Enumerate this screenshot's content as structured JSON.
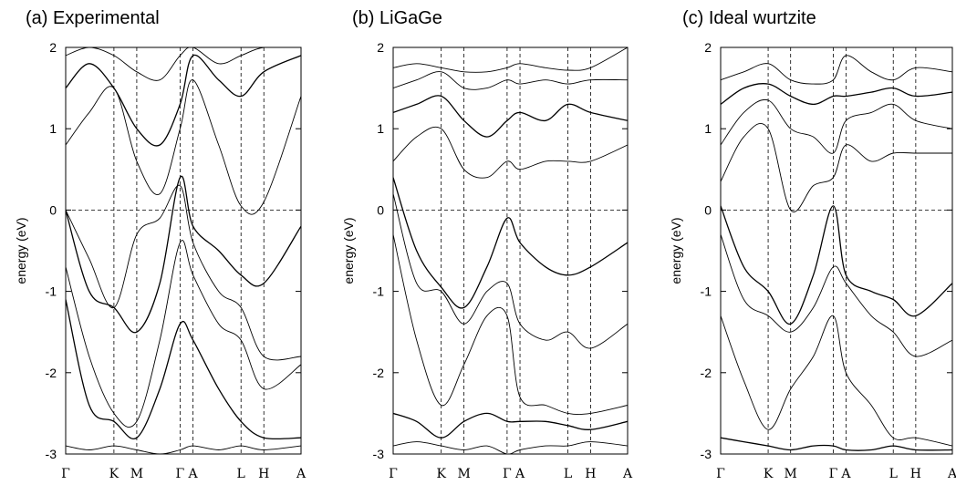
{
  "chart_data": [
    {
      "type": "line",
      "title": "(a) Experimental",
      "ylabel": "energy (eV)",
      "ylim": [
        -3,
        2
      ],
      "yticks": [
        "2",
        "1",
        "0",
        "-1",
        "-2",
        "-3"
      ],
      "kpoints": [
        "Γ",
        "K",
        "M",
        "Γ",
        "A",
        "L",
        "H",
        "A"
      ],
      "kpos": [
        0,
        0.205,
        0.302,
        0.486,
        0.541,
        0.745,
        0.842,
        1.0
      ],
      "zero_line": true,
      "series": [
        {
          "x": [
            0,
            0.1,
            0.205,
            0.302,
            0.4,
            0.486,
            0.541,
            0.65,
            0.745,
            0.842,
            1.0
          ],
          "y": [
            0.0,
            -1.0,
            -1.2,
            -1.5,
            -0.9,
            0.4,
            -0.2,
            -0.5,
            -0.8,
            -0.9,
            -0.2
          ]
        },
        {
          "x": [
            0,
            0.1,
            0.205,
            0.302,
            0.4,
            0.486,
            0.541,
            0.65,
            0.745,
            0.842,
            1.0
          ],
          "y": [
            0.0,
            -0.6,
            -1.2,
            -0.3,
            -0.1,
            0.3,
            -0.4,
            -1.0,
            -1.2,
            -1.8,
            -1.8
          ]
        },
        {
          "x": [
            0,
            0.1,
            0.205,
            0.302,
            0.4,
            0.486,
            0.541,
            0.65,
            0.745,
            0.842,
            1.0
          ],
          "y": [
            -0.7,
            -1.8,
            -2.5,
            -2.6,
            -1.6,
            -0.4,
            -0.8,
            -1.4,
            -1.6,
            -2.2,
            -1.9
          ]
        },
        {
          "x": [
            0,
            0.1,
            0.205,
            0.302,
            0.4,
            0.486,
            0.541,
            0.65,
            0.745,
            0.842,
            1.0
          ],
          "y": [
            -1.1,
            -2.4,
            -2.6,
            -2.8,
            -2.2,
            -1.4,
            -1.6,
            -2.2,
            -2.6,
            -2.8,
            -2.8
          ]
        },
        {
          "x": [
            0,
            0.1,
            0.205,
            0.302,
            0.4,
            0.486,
            0.541,
            0.65,
            0.745,
            0.842,
            1.0
          ],
          "y": [
            -2.9,
            -2.95,
            -2.9,
            -2.95,
            -3.0,
            -2.95,
            -2.9,
            -2.95,
            -2.9,
            -2.95,
            -2.9
          ]
        },
        {
          "x": [
            0,
            0.1,
            0.205,
            0.302,
            0.4,
            0.486,
            0.541,
            0.65,
            0.745,
            0.842,
            1.0
          ],
          "y": [
            0.8,
            1.2,
            1.5,
            0.6,
            0.2,
            1.0,
            1.6,
            0.8,
            0.05,
            0.1,
            1.4
          ]
        },
        {
          "x": [
            0,
            0.1,
            0.205,
            0.302,
            0.4,
            0.486,
            0.541,
            0.65,
            0.745,
            0.842,
            1.0
          ],
          "y": [
            1.5,
            1.8,
            1.5,
            1.0,
            0.8,
            1.3,
            1.9,
            1.6,
            1.4,
            1.7,
            1.9
          ]
        },
        {
          "x": [
            0,
            0.1,
            0.205,
            0.302,
            0.4,
            0.486,
            0.541,
            0.65,
            0.745,
            0.842,
            1.0
          ],
          "y": [
            1.9,
            2.0,
            1.9,
            1.7,
            1.6,
            1.9,
            2.0,
            1.8,
            1.9,
            2.0,
            2.0
          ]
        }
      ]
    },
    {
      "type": "line",
      "title": "(b) LiGaGe",
      "ylabel": "energy (eV)",
      "ylim": [
        -3,
        2
      ],
      "yticks": [
        "2",
        "1",
        "0",
        "-1",
        "-2",
        "-3"
      ],
      "kpoints": [
        "Γ",
        "K",
        "M",
        "Γ",
        "A",
        "L",
        "H",
        "A"
      ],
      "kpos": [
        0,
        0.205,
        0.302,
        0.486,
        0.541,
        0.745,
        0.842,
        1.0
      ],
      "zero_line": true,
      "series": [
        {
          "x": [
            0,
            0.1,
            0.205,
            0.302,
            0.4,
            0.486,
            0.541,
            0.65,
            0.745,
            0.842,
            1.0
          ],
          "y": [
            0.4,
            -0.5,
            -0.95,
            -1.2,
            -0.7,
            -0.1,
            -0.4,
            -0.7,
            -0.8,
            -0.7,
            -0.4
          ]
        },
        {
          "x": [
            0,
            0.1,
            0.205,
            0.302,
            0.4,
            0.486,
            0.541,
            0.65,
            0.745,
            0.842,
            1.0
          ],
          "y": [
            0.2,
            -0.9,
            -1.0,
            -1.4,
            -1.0,
            -0.9,
            -1.4,
            -1.6,
            -1.5,
            -1.7,
            -1.4
          ]
        },
        {
          "x": [
            0,
            0.1,
            0.205,
            0.302,
            0.4,
            0.486,
            0.541,
            0.65,
            0.745,
            0.842,
            1.0
          ],
          "y": [
            -0.3,
            -1.6,
            -2.4,
            -1.9,
            -1.3,
            -1.3,
            -2.3,
            -2.4,
            -2.5,
            -2.5,
            -2.4
          ]
        },
        {
          "x": [
            0,
            0.1,
            0.205,
            0.302,
            0.4,
            0.486,
            0.541,
            0.65,
            0.745,
            0.842,
            1.0
          ],
          "y": [
            -2.5,
            -2.6,
            -2.8,
            -2.6,
            -2.5,
            -2.6,
            -2.6,
            -2.6,
            -2.65,
            -2.7,
            -2.6
          ]
        },
        {
          "x": [
            0,
            0.1,
            0.205,
            0.302,
            0.4,
            0.486,
            0.541,
            0.65,
            0.745,
            0.842,
            1.0
          ],
          "y": [
            -2.9,
            -2.85,
            -2.9,
            -2.95,
            -2.9,
            -3.0,
            -2.95,
            -2.9,
            -2.9,
            -2.85,
            -2.9
          ]
        },
        {
          "x": [
            0,
            0.1,
            0.205,
            0.302,
            0.4,
            0.486,
            0.541,
            0.65,
            0.745,
            0.842,
            1.0
          ],
          "y": [
            0.6,
            0.9,
            1.0,
            0.5,
            0.4,
            0.6,
            0.5,
            0.6,
            0.6,
            0.6,
            0.8
          ]
        },
        {
          "x": [
            0,
            0.1,
            0.205,
            0.302,
            0.4,
            0.486,
            0.541,
            0.65,
            0.745,
            0.842,
            1.0
          ],
          "y": [
            1.2,
            1.3,
            1.4,
            1.1,
            0.9,
            1.1,
            1.2,
            1.1,
            1.3,
            1.2,
            1.1
          ]
        },
        {
          "x": [
            0,
            0.1,
            0.205,
            0.302,
            0.4,
            0.486,
            0.541,
            0.65,
            0.745,
            0.842,
            1.0
          ],
          "y": [
            1.5,
            1.6,
            1.7,
            1.5,
            1.5,
            1.6,
            1.55,
            1.6,
            1.55,
            1.6,
            1.6
          ]
        },
        {
          "x": [
            0,
            0.1,
            0.205,
            0.302,
            0.4,
            0.486,
            0.541,
            0.65,
            0.745,
            0.842,
            1.0
          ],
          "y": [
            1.75,
            1.8,
            1.75,
            1.7,
            1.7,
            1.75,
            1.8,
            1.75,
            1.72,
            1.75,
            2.0
          ]
        }
      ]
    },
    {
      "type": "line",
      "title": "(c) Ideal wurtzite",
      "ylabel": "energy (eV)",
      "ylim": [
        -3,
        2
      ],
      "yticks": [
        "2",
        "1",
        "0",
        "-1",
        "-2",
        "-3"
      ],
      "kpoints": [
        "Γ",
        "K",
        "M",
        "Γ",
        "A",
        "L",
        "H",
        "A"
      ],
      "kpos": [
        0,
        0.205,
        0.302,
        0.486,
        0.541,
        0.745,
        0.842,
        1.0
      ],
      "zero_line": true,
      "series": [
        {
          "x": [
            0,
            0.1,
            0.205,
            0.302,
            0.4,
            0.486,
            0.541,
            0.65,
            0.745,
            0.842,
            1.0
          ],
          "y": [
            0.05,
            -0.7,
            -1.0,
            -1.4,
            -0.8,
            0.05,
            -0.8,
            -1.0,
            -1.1,
            -1.3,
            -0.9
          ]
        },
        {
          "x": [
            0,
            0.1,
            0.205,
            0.302,
            0.4,
            0.486,
            0.541,
            0.65,
            0.745,
            0.842,
            1.0
          ],
          "y": [
            -0.3,
            -1.1,
            -1.3,
            -1.5,
            -1.2,
            -0.7,
            -0.9,
            -1.3,
            -1.5,
            -1.8,
            -1.6
          ]
        },
        {
          "x": [
            0,
            0.1,
            0.205,
            0.302,
            0.4,
            0.486,
            0.541,
            0.65,
            0.745,
            0.842,
            1.0
          ],
          "y": [
            -1.3,
            -2.1,
            -2.7,
            -2.2,
            -1.8,
            -1.3,
            -2.0,
            -2.4,
            -2.8,
            -2.8,
            -2.9
          ]
        },
        {
          "x": [
            0,
            0.1,
            0.205,
            0.302,
            0.4,
            0.486,
            0.541,
            0.65,
            0.745,
            0.842,
            1.0
          ],
          "y": [
            -2.8,
            -2.85,
            -2.9,
            -2.95,
            -2.9,
            -2.9,
            -2.95,
            -2.95,
            -2.9,
            -2.95,
            -2.95
          ]
        },
        {
          "x": [
            0,
            0.1,
            0.205,
            0.302,
            0.4,
            0.486,
            0.541,
            0.65,
            0.745,
            0.842,
            1.0
          ],
          "y": [
            0.35,
            0.9,
            1.0,
            0.0,
            0.3,
            0.4,
            0.8,
            0.6,
            0.7,
            0.7,
            0.7
          ]
        },
        {
          "x": [
            0,
            0.1,
            0.205,
            0.302,
            0.4,
            0.486,
            0.541,
            0.65,
            0.745,
            0.842,
            1.0
          ],
          "y": [
            0.8,
            1.2,
            1.35,
            1.0,
            0.9,
            0.7,
            1.1,
            1.2,
            1.3,
            1.1,
            1.0
          ]
        },
        {
          "x": [
            0,
            0.1,
            0.205,
            0.302,
            0.4,
            0.486,
            0.541,
            0.65,
            0.745,
            0.842,
            1.0
          ],
          "y": [
            1.3,
            1.5,
            1.55,
            1.4,
            1.3,
            1.4,
            1.4,
            1.45,
            1.5,
            1.4,
            1.45
          ]
        },
        {
          "x": [
            0,
            0.1,
            0.205,
            0.302,
            0.4,
            0.486,
            0.541,
            0.65,
            0.745,
            0.842,
            1.0
          ],
          "y": [
            1.6,
            1.7,
            1.8,
            1.6,
            1.55,
            1.6,
            1.9,
            1.7,
            1.6,
            1.75,
            1.7
          ]
        }
      ]
    }
  ]
}
